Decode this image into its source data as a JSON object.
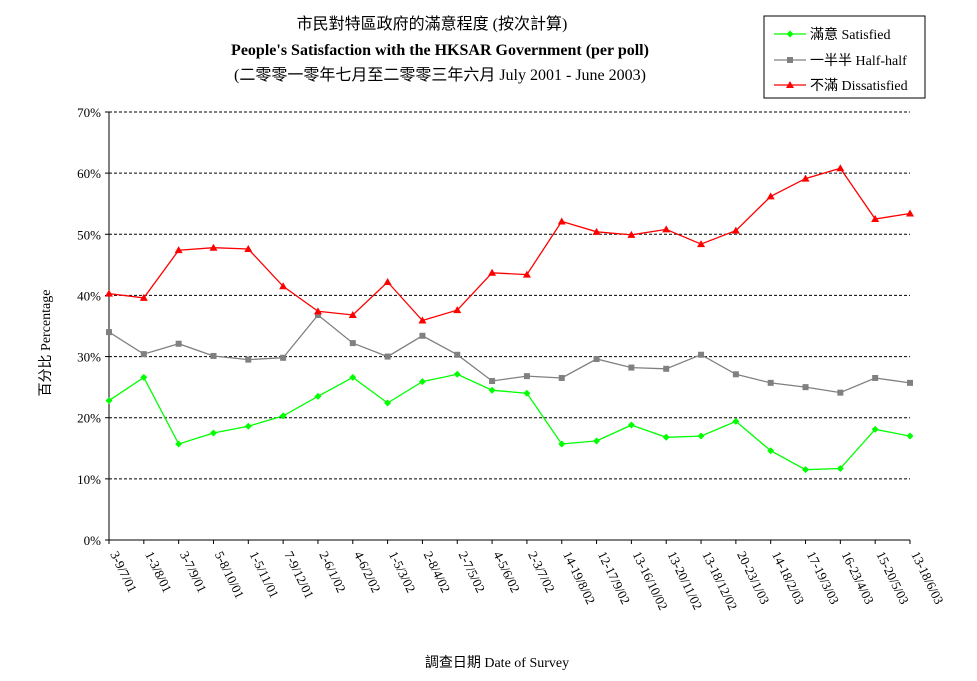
{
  "chart_data": {
    "type": "line",
    "title_lines": [
      "市民對特區政府的滿意程度 (按次計算)",
      "People's Satisfaction with the HKSAR Government  (per poll)",
      "(二零零一零年七月至二零零三年六月 July 2001 - June 2003)"
    ],
    "xlabel": "調查日期 Date of Survey",
    "ylabel": "百分比 Percentage",
    "ylim": [
      0,
      70
    ],
    "ytick_step": 10,
    "y_tick_labels": [
      "0%",
      "10%",
      "20%",
      "30%",
      "40%",
      "50%",
      "60%",
      "70%"
    ],
    "grid": "horizontal dashed",
    "legend_position": "top-right",
    "categories": [
      "3-9/7/01",
      "1-3/8/01",
      "3-7/9/01",
      "5-8/10/01",
      "1-5/11/01",
      "7-9/12/01",
      "2-6/1/02",
      "4-6/2/02",
      "1-5/3/02",
      "2-8/4/02",
      "2-7/5/02",
      "4-5/6/02",
      "2-3/7/02",
      "14-19/8/02",
      "12-17/9/02",
      "13-16/10/02",
      "13-20/11/02",
      "13-18/12/02",
      "20-23/1/03",
      "14-18/2/03",
      "17-19/3/03",
      "16-23/4/03",
      "15-20/5/03",
      "13-18/6/03"
    ],
    "series": [
      {
        "name": "滿意 Satisfied",
        "color": "#00ff00",
        "marker": "diamond",
        "values": [
          22.8,
          26.6,
          15.7,
          17.5,
          18.6,
          20.3,
          23.5,
          26.6,
          22.4,
          25.9,
          27.1,
          24.5,
          24.0,
          15.7,
          16.2,
          18.8,
          16.8,
          17.0,
          19.4,
          14.6,
          11.5,
          11.7,
          18.1,
          17.0
        ]
      },
      {
        "name": "一半半 Half-half",
        "color": "#808080",
        "marker": "square",
        "values": [
          34.0,
          30.4,
          32.1,
          30.1,
          29.5,
          29.8,
          36.8,
          32.2,
          30.0,
          33.4,
          30.3,
          26.0,
          26.8,
          26.5,
          29.6,
          28.2,
          28.0,
          30.3,
          27.1,
          25.7,
          25.0,
          24.1,
          26.5,
          25.7
        ]
      },
      {
        "name": "不滿 Dissatisfied",
        "color": "#ff0000",
        "marker": "triangle",
        "values": [
          40.3,
          39.6,
          47.4,
          47.8,
          47.6,
          41.5,
          37.4,
          36.8,
          42.2,
          35.9,
          37.6,
          43.7,
          43.4,
          52.1,
          50.4,
          49.9,
          50.8,
          48.4,
          50.6,
          56.2,
          59.1,
          60.8,
          52.5,
          53.4
        ]
      }
    ]
  }
}
